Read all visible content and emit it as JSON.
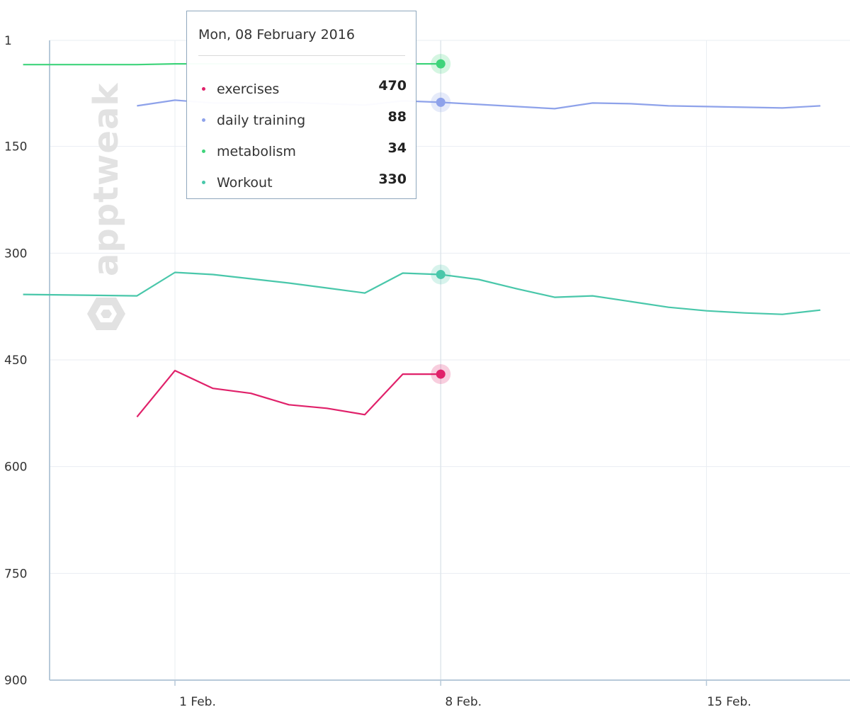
{
  "colors": {
    "exercises": "#e0216a",
    "daily_training": "#8ea2ea",
    "metabolism": "#3fd47b",
    "Workout": "#49c7aa",
    "grid": "#e9edf2",
    "axis": "#b7c9d9"
  },
  "watermark": {
    "text": "apptweak"
  },
  "tooltip": {
    "date": "Mon, 08 February 2016",
    "rows": [
      {
        "name": "exercises",
        "value": "470"
      },
      {
        "name": "daily training",
        "value": "88"
      },
      {
        "name": "metabolism",
        "value": "34"
      },
      {
        "name": "Workout",
        "value": "330"
      }
    ]
  },
  "chart_data": {
    "type": "line",
    "title": "",
    "xlabel": "",
    "ylabel": "",
    "y_reversed": true,
    "ylim": [
      1,
      900
    ],
    "xlim": [
      "2016-01-28",
      "2016-02-18"
    ],
    "y_ticks": [
      "1",
      "150",
      "300",
      "450",
      "600",
      "750",
      "900"
    ],
    "x_ticks": [
      {
        "label": "1 Feb.",
        "date": "2016-02-01"
      },
      {
        "label": "8 Feb.",
        "date": "2016-02-08"
      },
      {
        "label": "15 Feb.",
        "date": "2016-02-15"
      }
    ],
    "grid": true,
    "highlight_date": "2016-02-08",
    "series": [
      {
        "name": "exercises",
        "color_key": "exercises",
        "points": [
          {
            "date": "2016-01-31",
            "y": 530
          },
          {
            "date": "2016-02-01",
            "y": 465
          },
          {
            "date": "2016-02-02",
            "y": 490
          },
          {
            "date": "2016-02-03",
            "y": 497
          },
          {
            "date": "2016-02-04",
            "y": 513
          },
          {
            "date": "2016-02-05",
            "y": 518
          },
          {
            "date": "2016-02-06",
            "y": 527
          },
          {
            "date": "2016-02-07",
            "y": 470
          },
          {
            "date": "2016-02-08",
            "y": 470
          }
        ]
      },
      {
        "name": "daily training",
        "color_key": "daily_training",
        "points": [
          {
            "date": "2016-01-31",
            "y": 93
          },
          {
            "date": "2016-02-01",
            "y": 85
          },
          {
            "date": "2016-02-02",
            "y": 89
          },
          {
            "date": "2016-02-03",
            "y": 89
          },
          {
            "date": "2016-02-04",
            "y": 88
          },
          {
            "date": "2016-02-05",
            "y": 90
          },
          {
            "date": "2016-02-06",
            "y": 92
          },
          {
            "date": "2016-02-07",
            "y": 86
          },
          {
            "date": "2016-02-08",
            "y": 88
          },
          {
            "date": "2016-02-09",
            "y": 91
          },
          {
            "date": "2016-02-10",
            "y": 94
          },
          {
            "date": "2016-02-11",
            "y": 97
          },
          {
            "date": "2016-02-12",
            "y": 89
          },
          {
            "date": "2016-02-13",
            "y": 90
          },
          {
            "date": "2016-02-14",
            "y": 93
          },
          {
            "date": "2016-02-15",
            "y": 94
          },
          {
            "date": "2016-02-16",
            "y": 95
          },
          {
            "date": "2016-02-17",
            "y": 96
          },
          {
            "date": "2016-02-18",
            "y": 93
          }
        ]
      },
      {
        "name": "metabolism",
        "color_key": "metabolism",
        "points": [
          {
            "date": "2016-01-28",
            "y": 35
          },
          {
            "date": "2016-01-31",
            "y": 35
          },
          {
            "date": "2016-02-01",
            "y": 34
          },
          {
            "date": "2016-02-02",
            "y": 34
          },
          {
            "date": "2016-02-03",
            "y": 34
          },
          {
            "date": "2016-02-04",
            "y": 34
          },
          {
            "date": "2016-02-05",
            "y": 34
          },
          {
            "date": "2016-02-06",
            "y": 34
          },
          {
            "date": "2016-02-07",
            "y": 34
          },
          {
            "date": "2016-02-08",
            "y": 34
          }
        ]
      },
      {
        "name": "Workout",
        "color_key": "Workout",
        "points": [
          {
            "date": "2016-01-28",
            "y": 358
          },
          {
            "date": "2016-01-31",
            "y": 360
          },
          {
            "date": "2016-02-01",
            "y": 327
          },
          {
            "date": "2016-02-02",
            "y": 330
          },
          {
            "date": "2016-02-03",
            "y": 336
          },
          {
            "date": "2016-02-04",
            "y": 342
          },
          {
            "date": "2016-02-05",
            "y": 349
          },
          {
            "date": "2016-02-06",
            "y": 356
          },
          {
            "date": "2016-02-07",
            "y": 328
          },
          {
            "date": "2016-02-08",
            "y": 330
          },
          {
            "date": "2016-02-09",
            "y": 337
          },
          {
            "date": "2016-02-10",
            "y": 350
          },
          {
            "date": "2016-02-11",
            "y": 362
          },
          {
            "date": "2016-02-12",
            "y": 360
          },
          {
            "date": "2016-02-13",
            "y": 368
          },
          {
            "date": "2016-02-14",
            "y": 376
          },
          {
            "date": "2016-02-15",
            "y": 381
          },
          {
            "date": "2016-02-16",
            "y": 384
          },
          {
            "date": "2016-02-17",
            "y": 386
          },
          {
            "date": "2016-02-18",
            "y": 380
          }
        ]
      }
    ]
  }
}
